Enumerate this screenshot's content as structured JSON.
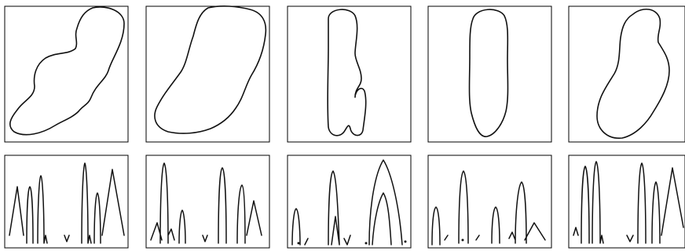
{
  "figure": {
    "rows": 2,
    "columns": 5,
    "row_contents": [
      "closed-contour",
      "spectrum-curves"
    ],
    "stroke_color": "#111111",
    "background_color": "#ffffff"
  }
}
